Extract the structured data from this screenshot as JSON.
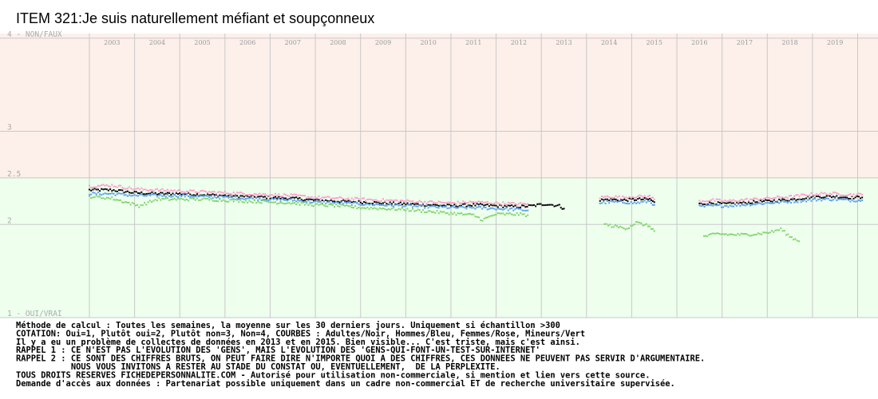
{
  "chart_data": {
    "type": "scatter",
    "title": "ITEM 321:Je suis naturellement méfiant et soupçonneux",
    "x_range": [
      2002.5,
      2019.95
    ],
    "ylim": [
      1,
      4.05
    ],
    "years": [
      "2003",
      "2004",
      "2005",
      "2006",
      "2007",
      "2008",
      "2009",
      "2010",
      "2011",
      "2012",
      "2013",
      "2014",
      "2015",
      "2016",
      "2017",
      "2018",
      "2019"
    ],
    "y_ticks": [
      {
        "value": 4,
        "label": "4 - NON/FAUX"
      },
      {
        "value": 3,
        "label": "3"
      },
      {
        "value": 2.5,
        "label": "2.5"
      },
      {
        "value": 2,
        "label": "2"
      },
      {
        "value": 1,
        "label": "1 - OUI/VRAI"
      }
    ],
    "bands": [
      {
        "from": 2.5,
        "to": 4.05,
        "color": "#fdf0ea"
      },
      {
        "from": 1,
        "to": 2.5,
        "color": "#eeffee"
      }
    ],
    "series": [
      {
        "name": "Adultes",
        "color": "#000000",
        "segments": [
          {
            "x": [
              2002.5,
              2003.0,
              2003.5,
              2004.0,
              2004.5,
              2005.0,
              2005.5,
              2006.0,
              2006.5,
              2007.0,
              2007.5,
              2008.0,
              2008.5,
              2009.0,
              2009.5,
              2010.0,
              2010.5,
              2011.0,
              2011.5,
              2012.0,
              2012.3,
              2012.6,
              2012.9,
              2013.0
            ],
            "y": [
              2.37,
              2.37,
              2.34,
              2.33,
              2.33,
              2.32,
              2.31,
              2.3,
              2.29,
              2.28,
              2.26,
              2.25,
              2.24,
              2.23,
              2.22,
              2.21,
              2.2,
              2.21,
              2.2,
              2.19,
              2.2,
              2.22,
              2.2,
              2.17
            ]
          },
          {
            "x": [
              2013.8,
              2014.0,
              2014.3,
              2014.6,
              2014.9,
              2015.0
            ],
            "y": [
              2.26,
              2.27,
              2.26,
              2.27,
              2.27,
              2.24
            ]
          },
          {
            "x": [
              2016.0,
              2016.3,
              2016.6,
              2016.9,
              2017.2,
              2017.5,
              2017.8,
              2018.1,
              2018.4,
              2018.7,
              2019.0,
              2019.3,
              2019.6
            ],
            "y": [
              2.22,
              2.23,
              2.22,
              2.23,
              2.24,
              2.25,
              2.26,
              2.27,
              2.29,
              2.3,
              2.3,
              2.29,
              2.29
            ]
          }
        ]
      },
      {
        "name": "Hommes",
        "color": "#5a9ef0",
        "segments": [
          {
            "x": [
              2002.5,
              2003.0,
              2003.5,
              2004.0,
              2004.5,
              2005.0,
              2005.5,
              2006.0,
              2006.5,
              2007.0,
              2007.5,
              2008.0,
              2008.5,
              2009.0,
              2009.5,
              2010.0,
              2010.5,
              2011.0,
              2011.5,
              2012.0,
              2012.2
            ],
            "y": [
              2.33,
              2.33,
              2.31,
              2.31,
              2.31,
              2.3,
              2.29,
              2.28,
              2.27,
              2.26,
              2.24,
              2.23,
              2.22,
              2.21,
              2.2,
              2.19,
              2.18,
              2.18,
              2.17,
              2.16,
              2.15
            ]
          },
          {
            "x": [
              2013.8,
              2014.0,
              2014.3,
              2014.6,
              2014.9,
              2015.0
            ],
            "y": [
              2.23,
              2.24,
              2.24,
              2.23,
              2.25,
              2.21
            ]
          },
          {
            "x": [
              2016.0,
              2016.3,
              2016.6,
              2016.9,
              2017.2,
              2017.5,
              2017.8,
              2018.1,
              2018.4,
              2018.7,
              2019.0,
              2019.3,
              2019.6
            ],
            "y": [
              2.19,
              2.2,
              2.2,
              2.21,
              2.22,
              2.23,
              2.24,
              2.25,
              2.26,
              2.27,
              2.27,
              2.26,
              2.26
            ]
          }
        ]
      },
      {
        "name": "Femmes",
        "color": "#ff9ac8",
        "segments": [
          {
            "x": [
              2002.5,
              2003.0,
              2003.5,
              2004.0,
              2004.5,
              2005.0,
              2005.5,
              2006.0,
              2006.5,
              2007.0,
              2007.5,
              2008.0,
              2008.5,
              2009.0,
              2009.5,
              2010.0,
              2010.5,
              2011.0,
              2011.5,
              2012.0,
              2012.2
            ],
            "y": [
              2.41,
              2.42,
              2.38,
              2.37,
              2.36,
              2.35,
              2.34,
              2.33,
              2.32,
              2.31,
              2.29,
              2.28,
              2.27,
              2.26,
              2.25,
              2.24,
              2.23,
              2.24,
              2.23,
              2.22,
              2.22
            ]
          },
          {
            "x": [
              2013.8,
              2014.0,
              2014.3,
              2014.6,
              2014.9,
              2015.0
            ],
            "y": [
              2.29,
              2.3,
              2.29,
              2.3,
              2.3,
              2.27
            ]
          },
          {
            "x": [
              2016.0,
              2016.3,
              2016.6,
              2016.9,
              2017.2,
              2017.5,
              2017.8,
              2018.1,
              2018.4,
              2018.7,
              2019.0,
              2019.3,
              2019.6
            ],
            "y": [
              2.25,
              2.26,
              2.25,
              2.26,
              2.27,
              2.28,
              2.29,
              2.3,
              2.32,
              2.33,
              2.33,
              2.32,
              2.32
            ]
          }
        ]
      },
      {
        "name": "Mineurs",
        "color": "#7fd46a",
        "segments": [
          {
            "x": [
              2002.5,
              2003.0,
              2003.3,
              2003.6,
              2004.0,
              2004.5,
              2005.0,
              2005.5,
              2006.0,
              2006.5,
              2007.0,
              2007.5,
              2008.0,
              2008.5,
              2009.0,
              2009.5,
              2010.0,
              2010.5,
              2011.0,
              2011.2,
              2011.5,
              2012.0,
              2012.2
            ],
            "y": [
              2.3,
              2.28,
              2.24,
              2.2,
              2.27,
              2.27,
              2.27,
              2.26,
              2.25,
              2.24,
              2.23,
              2.21,
              2.2,
              2.18,
              2.17,
              2.16,
              2.14,
              2.12,
              2.1,
              2.05,
              2.11,
              2.11,
              2.1
            ]
          },
          {
            "x": [
              2013.9,
              2014.1,
              2014.4,
              2014.6,
              2014.9,
              2015.0
            ],
            "y": [
              2.0,
              1.98,
              1.96,
              2.02,
              1.98,
              1.93
            ]
          },
          {
            "x": [
              2016.1,
              2016.4,
              2016.7,
              2017.0,
              2017.3,
              2017.6,
              2017.8,
              2018.0,
              2018.2
            ],
            "y": [
              1.87,
              1.9,
              1.89,
              1.89,
              1.9,
              1.92,
              1.95,
              1.87,
              1.82
            ]
          }
        ]
      }
    ]
  },
  "notes": [
    "Méthode de calcul : Toutes les semaines, la moyenne sur les 30 derniers jours. Uniquement si échantillon >300",
    "COTATION: Oui=1, Plutôt oui=2, Plutôt non=3, Non=4, COURBES : Adultes/Noir, Hommes/Bleu, Femmes/Rose, Mineurs/Vert",
    "Il y a eu un problème de collectes de données en 2013 et en 2015. Bien visible... C'est triste, mais c'est ainsi.",
    "RAPPEL 1 : CE N'EST PAS L'EVOLUTION DES 'GENS', MAIS L'EVOLUTION DES 'GENS-QUI-FONT-UN-TEST-SUR-INTERNET'",
    "RAPPEL 2 : CE SONT DES CHIFFRES BRUTS, ON PEUT FAIRE DIRE N'IMPORTE QUOI A DES CHIFFRES, CES DONNEES NE PEUVENT PAS SERVIR D'ARGUMENTAIRE.",
    "           NOUS VOUS INVITONS A RESTER AU STADE DU CONSTAT OU, EVENTUELLEMENT,  DE LA PERPLEXITE.",
    "TOUS DROITS RESERVES FICHEDEPERSONNALITE.COM - Autorisé pour utilisation non-commerciale, si mention et lien vers cette source.",
    "Demande d'accès aux données : Partenariat possible uniquement dans un cadre non-commercial ET de recherche universitaire supervisée."
  ]
}
